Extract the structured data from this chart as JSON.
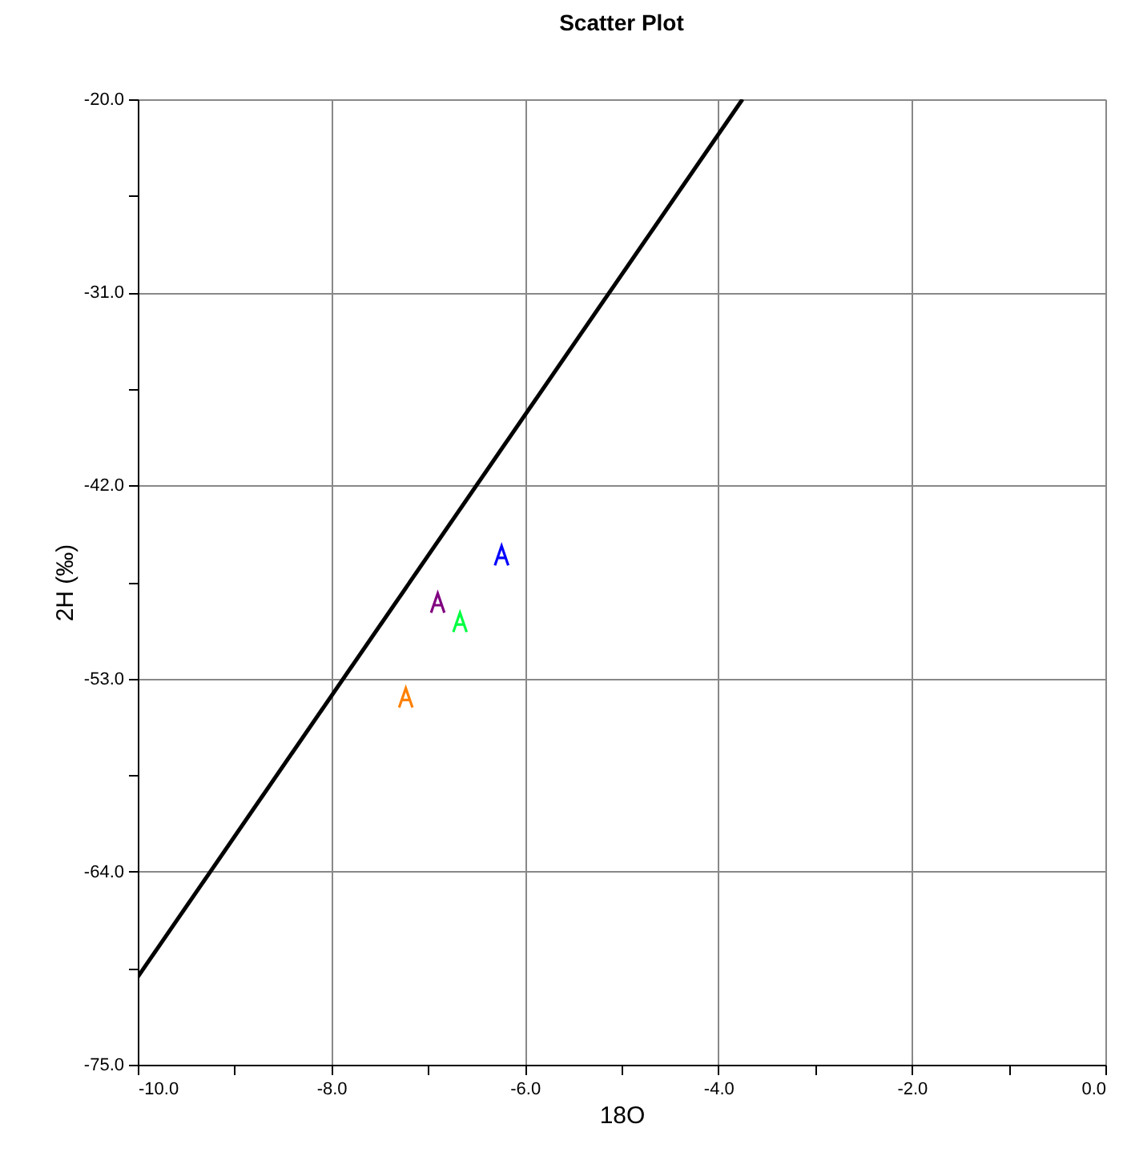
{
  "chart_data": {
    "type": "scatter",
    "title": "Scatter Plot",
    "xlabel": "18O",
    "ylabel": "2H (‰)",
    "xlim": [
      -10,
      0
    ],
    "ylim": [
      -75,
      -20
    ],
    "xticks": [
      {
        "value": -10,
        "label": "-10.0"
      },
      {
        "value": -9,
        "label": null
      },
      {
        "value": -8,
        "label": "-8.0"
      },
      {
        "value": -7,
        "label": null
      },
      {
        "value": -6,
        "label": "-6.0"
      },
      {
        "value": -5,
        "label": null
      },
      {
        "value": -4,
        "label": "-4.0"
      },
      {
        "value": -3,
        "label": null
      },
      {
        "value": -2,
        "label": "-2.0"
      },
      {
        "value": -1,
        "label": null
      },
      {
        "value": 0,
        "label": "0.0"
      }
    ],
    "yticks": [
      {
        "value": -75,
        "label": "-75.0"
      },
      {
        "value": -69.5,
        "label": null
      },
      {
        "value": -64,
        "label": "-64.0"
      },
      {
        "value": -58.5,
        "label": null
      },
      {
        "value": -53,
        "label": "-53.0"
      },
      {
        "value": -47.5,
        "label": null
      },
      {
        "value": -42,
        "label": "-42.0"
      },
      {
        "value": -36.5,
        "label": null
      },
      {
        "value": -31,
        "label": "-31.0"
      },
      {
        "value": -25.5,
        "label": null
      },
      {
        "value": -20,
        "label": "-20.0"
      }
    ],
    "grid": true,
    "series": [
      {
        "type": "line",
        "color": "#000000",
        "x": [
          -10,
          -3.75
        ],
        "values": [
          -70,
          -20
        ]
      },
      {
        "color": "#0000ff",
        "x": [
          -6.24
        ],
        "values": [
          -46.0
        ]
      },
      {
        "color": "#800080",
        "x": [
          -6.9
        ],
        "values": [
          -48.7
        ]
      },
      {
        "color": "#00ff40",
        "x": [
          -6.67
        ],
        "values": [
          -49.8
        ]
      },
      {
        "color": "#ff8000",
        "x": [
          -7.23
        ],
        "values": [
          -54.1
        ]
      }
    ]
  }
}
